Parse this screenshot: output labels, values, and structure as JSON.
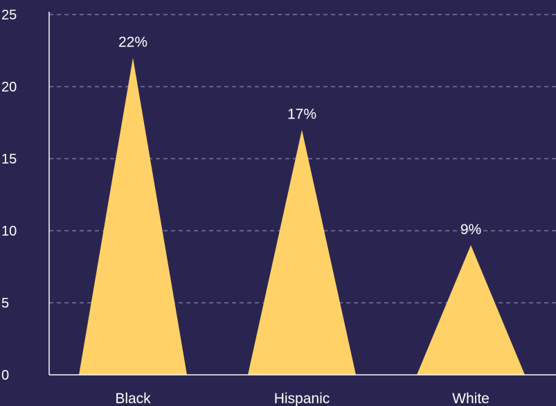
{
  "chart_data": {
    "type": "bar",
    "mark_shape": "triangle",
    "categories": [
      "Black",
      "Hispanic",
      "White"
    ],
    "values": [
      22,
      17,
      9
    ],
    "data_labels": [
      "22%",
      "17%",
      "9%"
    ],
    "title": "",
    "xlabel": "",
    "ylabel": "",
    "ylim": [
      0,
      25
    ],
    "yticks": [
      "0",
      "5",
      "10",
      "15",
      "20",
      "25"
    ],
    "grid": true,
    "legend": "none"
  },
  "colors": {
    "background": "#2a2550",
    "bar": "#ffd166",
    "grid": "#8a86a8",
    "axis": "#ffffff",
    "text": "#ffffff"
  }
}
